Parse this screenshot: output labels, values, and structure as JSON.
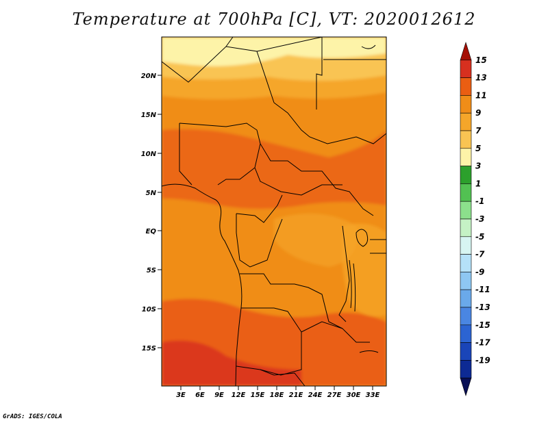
{
  "title": "Temperature at 700hPa [C], VT: 2020012612",
  "credit": "GrADS: IGES/COLA",
  "map": {
    "lat_labels": [
      "20N",
      "15N",
      "10N",
      "5N",
      "EQ",
      "5S",
      "10S",
      "15S"
    ],
    "lon_labels": [
      "3E",
      "6E",
      "9E",
      "12E",
      "15E",
      "18E",
      "21E",
      "24E",
      "27E",
      "30E",
      "33E"
    ]
  },
  "colorbar": {
    "labels": [
      "15",
      "13",
      "11",
      "9",
      "7",
      "5",
      "3",
      "1",
      "-1",
      "-3",
      "-5",
      "-7",
      "-9",
      "-11",
      "-13",
      "-15",
      "-17",
      "-19"
    ],
    "colors": [
      "#a50f05",
      "#d7301f",
      "#ea5e12",
      "#f08d18",
      "#f5a62a",
      "#f9c453",
      "#fdf3a8",
      "#2ca02c",
      "#52c152",
      "#8ce08c",
      "#c5f2c5",
      "#d7f5f2",
      "#b5e1f8",
      "#8ec7f2",
      "#6aa9ea",
      "#4a86e2",
      "#2c64d2",
      "#1a45b8",
      "#0d2a94",
      "#080f55"
    ]
  }
}
